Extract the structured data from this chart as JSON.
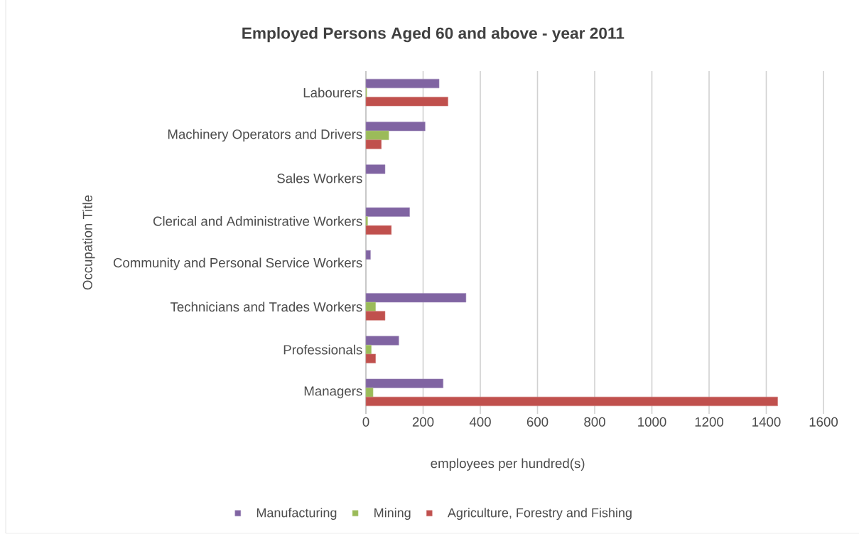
{
  "chart_data": {
    "type": "bar",
    "orientation": "horizontal",
    "title": "Employed Persons Aged 60 and above - year 2011",
    "xlabel": "employees per hundred(s)",
    "ylabel": "Occupation Title",
    "categories": [
      "Labourers",
      "Machinery Operators and Drivers",
      "Sales Workers",
      "Clerical and Administrative Workers",
      "Community and Personal Service Workers",
      "Technicians and Trades Workers",
      "Professionals",
      "Managers"
    ],
    "series": [
      {
        "name": "Manufacturing",
        "color": "#8064a2",
        "values": [
          256,
          207,
          67,
          153,
          16,
          350,
          115,
          270
        ]
      },
      {
        "name": "Mining",
        "color": "#9bbb59",
        "values": [
          3,
          80,
          null,
          6,
          null,
          34,
          19,
          25
        ]
      },
      {
        "name": "Agriculture, Forestry and Fishing",
        "color": "#c0504d",
        "values": [
          287,
          54,
          null,
          89,
          null,
          67,
          34,
          1440
        ]
      }
    ],
    "xlim": [
      0,
      1600
    ],
    "xticks": [
      0,
      200,
      400,
      600,
      800,
      1000,
      1200,
      1400,
      1600
    ],
    "grid": "x",
    "legend": "bottom"
  }
}
